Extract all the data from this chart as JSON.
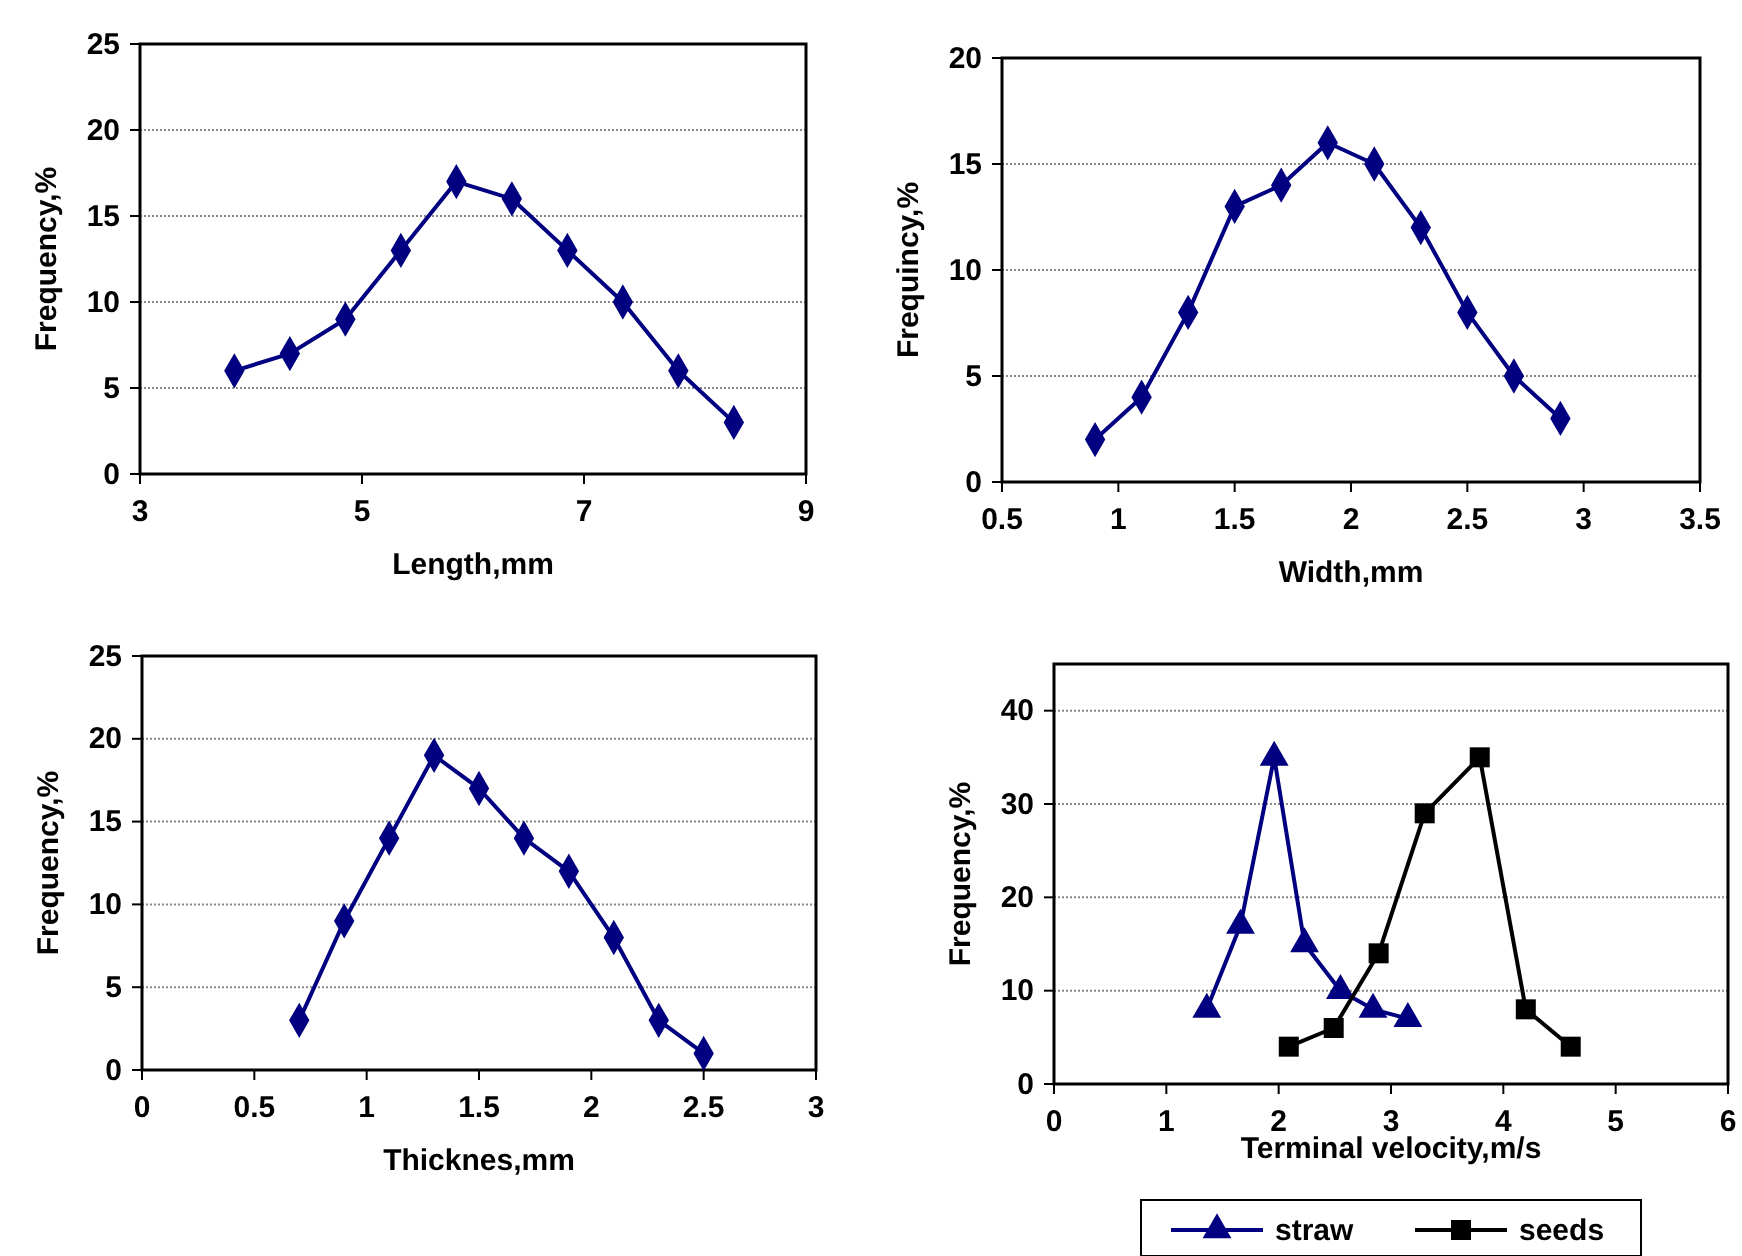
{
  "chart_data": [
    {
      "type": "line",
      "xlabel": "Length,mm",
      "ylabel": "Frequency,%",
      "xlim": [
        3,
        9
      ],
      "xticks": [
        3,
        5,
        7,
        9
      ],
      "ylim": [
        0,
        25
      ],
      "yticks": [
        0,
        5,
        10,
        15,
        20,
        25
      ],
      "grid": "y",
      "marker": "diamond",
      "legend": false,
      "series": [
        {
          "color": "#000080",
          "x": [
            3.85,
            4.35,
            4.85,
            5.35,
            5.85,
            6.35,
            6.85,
            7.35,
            7.85,
            8.35
          ],
          "values": [
            6,
            7,
            9,
            13,
            17,
            16,
            13,
            10,
            6,
            3
          ]
        }
      ]
    },
    {
      "type": "line",
      "xlabel": "Width,mm",
      "ylabel": "Frequincy,%",
      "xlim": [
        0.5,
        3.5
      ],
      "xticks": [
        0.5,
        1,
        1.5,
        2,
        2.5,
        3,
        3.5
      ],
      "ylim": [
        0,
        20
      ],
      "yticks": [
        0,
        5,
        10,
        15,
        20
      ],
      "grid": "y",
      "marker": "diamond",
      "legend": false,
      "series": [
        {
          "color": "#000080",
          "x": [
            0.9,
            1.1,
            1.3,
            1.5,
            1.7,
            1.9,
            2.1,
            2.3,
            2.5,
            2.7,
            2.9
          ],
          "values": [
            2,
            4,
            8,
            13,
            14,
            16,
            15,
            12,
            8,
            5,
            3
          ]
        }
      ]
    },
    {
      "type": "line",
      "xlabel": "Thicknes,mm",
      "ylabel": "Frequency,%",
      "xlim": [
        0,
        3
      ],
      "xticks": [
        0,
        0.5,
        1,
        1.5,
        2,
        2.5,
        3
      ],
      "ylim": [
        0,
        25
      ],
      "yticks": [
        0,
        5,
        10,
        15,
        20,
        25
      ],
      "grid": "y",
      "marker": "diamond",
      "legend": false,
      "series": [
        {
          "color": "#000080",
          "x": [
            0.7,
            0.9,
            1.1,
            1.3,
            1.5,
            1.7,
            1.9,
            2.1,
            2.3,
            2.5
          ],
          "values": [
            3,
            9,
            14,
            19,
            17,
            14,
            12,
            8,
            3,
            1
          ]
        }
      ]
    },
    {
      "type": "line",
      "xlabel": "Terminal velocity,m/s",
      "ylabel": "Frequency,%",
      "xlim": [
        0,
        6
      ],
      "xticks": [
        0,
        1,
        2,
        3,
        4,
        5,
        6
      ],
      "ylim": [
        0,
        45
      ],
      "yticks": [
        0,
        10,
        20,
        30,
        40
      ],
      "grid": "y",
      "legend": "bottom",
      "series": [
        {
          "name": "straw",
          "color": "#000080",
          "marker": "triangle",
          "x": [
            1.36,
            1.66,
            1.96,
            2.23,
            2.55,
            2.84,
            3.15
          ],
          "values": [
            8,
            17,
            35,
            15,
            10,
            8,
            7
          ]
        },
        {
          "name": "seeds",
          "color": "#000000",
          "marker": "square",
          "x": [
            2.09,
            2.49,
            2.89,
            3.3,
            3.79,
            4.2,
            4.6
          ],
          "values": [
            4,
            6,
            14,
            29,
            35,
            8,
            4
          ]
        }
      ]
    }
  ]
}
